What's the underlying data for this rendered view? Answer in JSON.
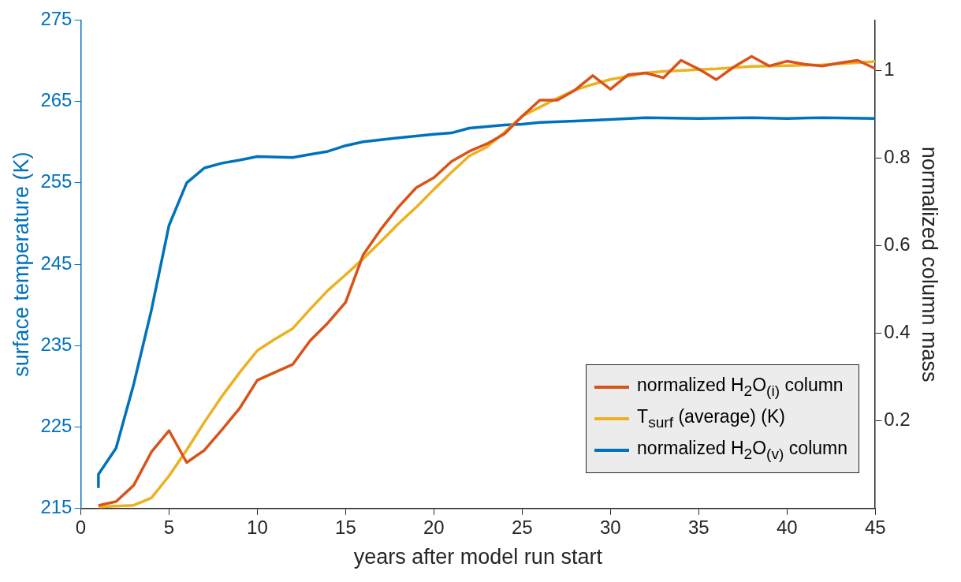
{
  "chart_data": {
    "type": "line",
    "xlabel": "years after model run start",
    "ylabel": "surface temperature (K)",
    "y2label": "normalized column mass",
    "xlim": [
      0,
      45
    ],
    "xticks": [
      0,
      5,
      10,
      15,
      20,
      25,
      30,
      35,
      40,
      45
    ],
    "ylim": [
      215,
      275
    ],
    "yticks": [
      215,
      225,
      235,
      245,
      255,
      265,
      275
    ],
    "y2lim": [
      0,
      1.116
    ],
    "y2ticks": [
      0.2,
      0.4,
      0.6,
      0.8,
      1
    ],
    "legend": "bottom right",
    "grid": false,
    "marker": "none",
    "line_style": "solid",
    "series": [
      {
        "name": "normalized H$_{2}$O$_{(i)}$ column",
        "color": "#d95319",
        "axis": "y2",
        "x": [
          1,
          2,
          3,
          4,
          5,
          6,
          7,
          8,
          9,
          10,
          11,
          12,
          13,
          14,
          15,
          16,
          17,
          18,
          19,
          20,
          21,
          22,
          23,
          24,
          25,
          26,
          27,
          28,
          29,
          30,
          31,
          32,
          33,
          34,
          35,
          36,
          37,
          38,
          39,
          40,
          41,
          42,
          43,
          44,
          45
        ],
        "values": [
          0.007,
          0.016,
          0.053,
          0.129,
          0.178,
          0.105,
          0.133,
          0.18,
          0.229,
          0.293,
          0.311,
          0.329,
          0.384,
          0.424,
          0.471,
          0.58,
          0.638,
          0.689,
          0.733,
          0.756,
          0.793,
          0.816,
          0.833,
          0.856,
          0.896,
          0.933,
          0.933,
          0.956,
          0.989,
          0.958,
          0.991,
          0.995,
          0.984,
          1.024,
          1.004,
          0.98,
          1.009,
          1.033,
          1.011,
          1.022,
          1.015,
          1.011,
          1.018,
          1.024,
          1.005
        ]
      },
      {
        "name": "T$_{surf}$ (average) (K)",
        "color": "#edb120",
        "axis": "y",
        "x": [
          1,
          2,
          3,
          4,
          5,
          6,
          7,
          8,
          9,
          10,
          11,
          12,
          13,
          14,
          15,
          16,
          17,
          18,
          19,
          20,
          21,
          22,
          23,
          24,
          25,
          26,
          27,
          28,
          29,
          30,
          31,
          32,
          33,
          34,
          35,
          36,
          38,
          40,
          42,
          45
        ],
        "values": [
          215.2,
          215.3,
          215.4,
          216.3,
          219.0,
          222.2,
          225.6,
          228.8,
          231.7,
          234.4,
          235.8,
          237.1,
          239.5,
          241.8,
          243.7,
          245.7,
          247.8,
          250.0,
          252.0,
          254.2,
          256.3,
          258.3,
          259.4,
          261.2,
          263.2,
          264.3,
          265.4,
          266.4,
          267.1,
          267.7,
          268.1,
          268.5,
          268.7,
          268.8,
          268.9,
          269.0,
          269.3,
          269.4,
          269.5,
          269.9
        ]
      },
      {
        "name": "normalized H$_{2}$O$_{(v)}$ column",
        "color": "#0072bd",
        "axis": "y2",
        "x": [
          1,
          1,
          2,
          3,
          4,
          5,
          6,
          7,
          8,
          9,
          10,
          12,
          13,
          14,
          15,
          16,
          18,
          20,
          21,
          22,
          24,
          25,
          26,
          28,
          30,
          32,
          35,
          38,
          40,
          42,
          45
        ],
        "values": [
          0.047,
          0.078,
          0.138,
          0.284,
          0.453,
          0.647,
          0.744,
          0.778,
          0.789,
          0.796,
          0.804,
          0.802,
          0.809,
          0.816,
          0.829,
          0.838,
          0.847,
          0.855,
          0.858,
          0.869,
          0.876,
          0.878,
          0.882,
          0.885,
          0.889,
          0.893,
          0.891,
          0.893,
          0.891,
          0.893,
          0.891
        ]
      }
    ]
  }
}
